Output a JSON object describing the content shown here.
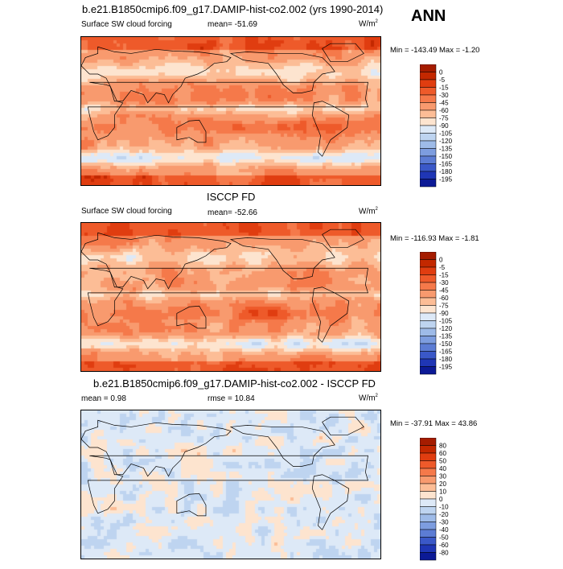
{
  "season": "ANN",
  "panels": [
    {
      "title": "b.e21.B1850cmip6.f09_g17.DAMIP-hist-co2.002 (yrs 1990-2014)",
      "left_label": "Surface SW cloud forcing",
      "center_label": "mean= -51.69",
      "units": "W/m",
      "units_sup": "2",
      "minmax": "Min = -143.49 Max =  -1.20",
      "colorbar": "abs"
    },
    {
      "title": "ISCCP FD",
      "left_label": "Surface SW cloud forcing",
      "center_label": "mean= -52.66",
      "units": "W/m",
      "units_sup": "2",
      "minmax": "Min = -116.93 Max =  -1.81",
      "colorbar": "abs"
    },
    {
      "title": "b.e21.B1850cmip6.f09_g17.DAMIP-hist-co2.002 - ISCCP FD",
      "left_label": "mean =  0.98",
      "center_label": "rmse =  10.84",
      "units": "W/m",
      "units_sup": "2",
      "minmax": "Min = -37.91 Max =  43.86",
      "colorbar": "diff"
    }
  ],
  "chart_data": [
    {
      "type": "heatmap",
      "title": "b.e21.B1850cmip6.f09_g17.DAMIP-hist-co2.002 (yrs 1990-2014)",
      "variable": "Surface SW cloud forcing",
      "units": "W/m2",
      "mean": -51.69,
      "min": -143.49,
      "max": -1.2,
      "levels": [
        0,
        -5,
        -15,
        -30,
        -45,
        -60,
        -75,
        -90,
        -105,
        -120,
        -135,
        -150,
        -165,
        -180,
        -195
      ],
      "colors": [
        "#a51c00",
        "#c32800",
        "#e03d10",
        "#ee5a2a",
        "#f5794a",
        "#f89a6e",
        "#fcbd96",
        "#fde4cf",
        "#dde9f7",
        "#bed4f0",
        "#9ebbe8",
        "#7d9ddf",
        "#5c7cd4",
        "#3a58c8",
        "#1f36b5",
        "#0c1a96"
      ]
    },
    {
      "type": "heatmap",
      "title": "ISCCP FD",
      "variable": "Surface SW cloud forcing",
      "units": "W/m2",
      "mean": -52.66,
      "min": -116.93,
      "max": -1.81,
      "levels": [
        0,
        -5,
        -15,
        -30,
        -45,
        -60,
        -75,
        -90,
        -105,
        -120,
        -135,
        -150,
        -165,
        -180,
        -195
      ],
      "colors": [
        "#a51c00",
        "#c32800",
        "#e03d10",
        "#ee5a2a",
        "#f5794a",
        "#f89a6e",
        "#fcbd96",
        "#fde4cf",
        "#dde9f7",
        "#bed4f0",
        "#9ebbe8",
        "#7d9ddf",
        "#5c7cd4",
        "#3a58c8",
        "#1f36b5",
        "#0c1a96"
      ]
    },
    {
      "type": "heatmap",
      "title": "b.e21.B1850cmip6.f09_g17.DAMIP-hist-co2.002 - ISCCP FD",
      "units": "W/m2",
      "mean": 0.98,
      "rmse": 10.84,
      "min": -37.91,
      "max": 43.86,
      "levels": [
        80,
        60,
        50,
        40,
        30,
        20,
        10,
        0,
        -10,
        -20,
        -30,
        -40,
        -50,
        -60,
        -80
      ],
      "colors": [
        "#a51c00",
        "#c32800",
        "#e03d10",
        "#ee5a2a",
        "#f5794a",
        "#f89a6e",
        "#fcbd96",
        "#fde4cf",
        "#dde9f7",
        "#bed4f0",
        "#9ebbe8",
        "#7d9ddf",
        "#5c7cd4",
        "#3a58c8",
        "#1f36b5",
        "#0c1a96"
      ]
    }
  ]
}
